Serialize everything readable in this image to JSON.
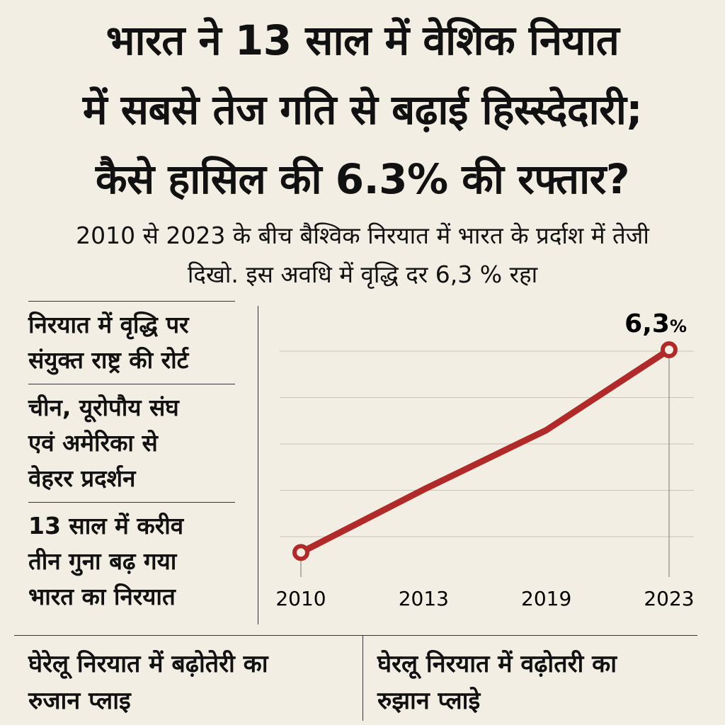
{
  "title": {
    "lines": [
      "भारत ने 13 साल में वेशिक नियात",
      "में सबसे तेज गति से बढ़ाई हिस्स्देदारी;",
      "कैसे हासिल की 6.3% की रफ्तार?"
    ]
  },
  "subtitle": {
    "lines": [
      "2010 से 2023 के बीच बैश्विक निरयात में भारत के प्रर्दाश में तेजी",
      "दिखो. इस अवधि में वृद्धि दर 6,3 % रहा"
    ]
  },
  "sidebar": {
    "items": [
      {
        "lines": [
          "निरयात में वृद्धि पर",
          "संयुक्त राष्ट्र की रोर्ट"
        ]
      },
      {
        "lines": [
          "चीन, यूरोपौय संघ",
          "एवं अमेरिका से",
          "वेहरर प्रदर्शन"
        ]
      },
      {
        "lines": [
          "13 साल में करीव",
          "तीन गुना बढ़ गया",
          "भारत का निरयात"
        ]
      }
    ]
  },
  "footer": {
    "left": [
      "घेरेलू निरयात में बढ़ोतेरी का",
      "रुजान प्लाइ"
    ],
    "right": [
      "घेरलू निरयात में वढ़ोतरी का",
      "रुझान प्लाइे"
    ]
  },
  "colors": {
    "line": "#b02a2a",
    "background": "#f3eee4"
  },
  "chart_data": {
    "type": "line",
    "categories": [
      "2010",
      "2013",
      "2019",
      "2023"
    ],
    "series": [
      {
        "values": [
          0.5,
          2.3,
          4.0,
          6.3
        ]
      }
    ],
    "end_label": "6,3",
    "end_label_unit": "%",
    "grid": true,
    "markers": "endpoints"
  }
}
